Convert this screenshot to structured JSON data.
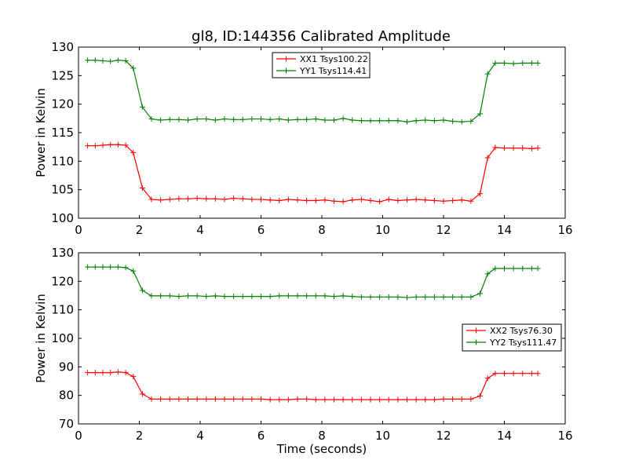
{
  "title": "gl8, ID:144356 Calibrated Amplitude",
  "colors": {
    "xx": "#ff0000",
    "yy": "#008000",
    "axes": "#000000",
    "background": "#ffffff"
  },
  "chart_data": [
    {
      "type": "line",
      "xlabel": "",
      "ylabel": "Power in Kelvin",
      "xlim": [
        0,
        16
      ],
      "ylim": [
        100,
        130
      ],
      "xticks": [
        0,
        2,
        4,
        6,
        8,
        10,
        12,
        14,
        16
      ],
      "yticks": [
        100,
        105,
        110,
        115,
        120,
        125,
        130
      ],
      "grid": false,
      "legend_position": "top-center",
      "series": [
        {
          "name": "XX1 Tsys100.22",
          "color": "#ff0000",
          "x": [
            0.3,
            0.55,
            0.8,
            1.05,
            1.3,
            1.55,
            1.8,
            2.1,
            2.4,
            2.7,
            3.0,
            3.3,
            3.6,
            3.9,
            4.2,
            4.5,
            4.8,
            5.1,
            5.4,
            5.7,
            6.0,
            6.3,
            6.6,
            6.9,
            7.2,
            7.5,
            7.8,
            8.1,
            8.4,
            8.7,
            9.0,
            9.3,
            9.6,
            9.9,
            10.2,
            10.5,
            10.8,
            11.1,
            11.4,
            11.7,
            12.0,
            12.3,
            12.6,
            12.9,
            13.2,
            13.45,
            13.7,
            14.0,
            14.3,
            14.6,
            14.9,
            15.1
          ],
          "y": [
            112.7,
            112.7,
            112.8,
            112.9,
            112.9,
            112.8,
            111.5,
            105.3,
            103.3,
            103.2,
            103.3,
            103.4,
            103.4,
            103.5,
            103.4,
            103.4,
            103.3,
            103.5,
            103.4,
            103.3,
            103.3,
            103.2,
            103.1,
            103.3,
            103.2,
            103.1,
            103.1,
            103.2,
            103.0,
            102.9,
            103.2,
            103.3,
            103.1,
            102.9,
            103.3,
            103.1,
            103.2,
            103.3,
            103.2,
            103.1,
            103.0,
            103.1,
            103.2,
            103.0,
            104.3,
            110.6,
            112.4,
            112.3,
            112.3,
            112.3,
            112.2,
            112.3
          ]
        },
        {
          "name": "YY1 Tsys114.41",
          "color": "#008000",
          "x": [
            0.3,
            0.55,
            0.8,
            1.05,
            1.3,
            1.55,
            1.8,
            2.1,
            2.4,
            2.7,
            3.0,
            3.3,
            3.6,
            3.9,
            4.2,
            4.5,
            4.8,
            5.1,
            5.4,
            5.7,
            6.0,
            6.3,
            6.6,
            6.9,
            7.2,
            7.5,
            7.8,
            8.1,
            8.4,
            8.7,
            9.0,
            9.3,
            9.6,
            9.9,
            10.2,
            10.5,
            10.8,
            11.1,
            11.4,
            11.7,
            12.0,
            12.3,
            12.6,
            12.9,
            13.2,
            13.45,
            13.7,
            14.0,
            14.3,
            14.6,
            14.9,
            15.1
          ],
          "y": [
            127.7,
            127.7,
            127.6,
            127.5,
            127.7,
            127.6,
            126.3,
            119.5,
            117.4,
            117.2,
            117.3,
            117.3,
            117.2,
            117.4,
            117.4,
            117.2,
            117.4,
            117.3,
            117.3,
            117.4,
            117.4,
            117.3,
            117.4,
            117.2,
            117.3,
            117.3,
            117.4,
            117.2,
            117.2,
            117.5,
            117.2,
            117.1,
            117.1,
            117.1,
            117.1,
            117.1,
            116.9,
            117.1,
            117.2,
            117.1,
            117.2,
            117.0,
            116.9,
            117.0,
            118.3,
            125.3,
            127.2,
            127.2,
            127.1,
            127.2,
            127.2,
            127.2
          ]
        }
      ]
    },
    {
      "type": "line",
      "xlabel": "Time (seconds)",
      "ylabel": "Power in Kelvin",
      "xlim": [
        0,
        16
      ],
      "ylim": [
        70,
        130
      ],
      "xticks": [
        0,
        2,
        4,
        6,
        8,
        10,
        12,
        14,
        16
      ],
      "yticks": [
        70,
        80,
        90,
        100,
        110,
        120,
        130
      ],
      "grid": false,
      "legend_position": "center-right",
      "series": [
        {
          "name": "XX2 Tsys76.30",
          "color": "#ff0000",
          "x": [
            0.3,
            0.55,
            0.8,
            1.05,
            1.3,
            1.55,
            1.8,
            2.1,
            2.4,
            2.7,
            3.0,
            3.3,
            3.6,
            3.9,
            4.2,
            4.5,
            4.8,
            5.1,
            5.4,
            5.7,
            6.0,
            6.3,
            6.6,
            6.9,
            7.2,
            7.5,
            7.8,
            8.1,
            8.4,
            8.7,
            9.0,
            9.3,
            9.6,
            9.9,
            10.2,
            10.5,
            10.8,
            11.1,
            11.4,
            11.7,
            12.0,
            12.3,
            12.6,
            12.9,
            13.2,
            13.45,
            13.7,
            14.0,
            14.3,
            14.6,
            14.9,
            15.1
          ],
          "y": [
            88.0,
            88.0,
            88.0,
            88.0,
            88.2,
            88.0,
            86.6,
            80.5,
            78.7,
            78.7,
            78.7,
            78.7,
            78.7,
            78.7,
            78.7,
            78.7,
            78.7,
            78.7,
            78.7,
            78.7,
            78.7,
            78.5,
            78.5,
            78.5,
            78.7,
            78.7,
            78.5,
            78.5,
            78.5,
            78.5,
            78.5,
            78.5,
            78.5,
            78.5,
            78.5,
            78.5,
            78.5,
            78.5,
            78.5,
            78.5,
            78.7,
            78.7,
            78.7,
            78.7,
            79.8,
            86.0,
            87.7,
            87.7,
            87.7,
            87.7,
            87.7,
            87.7
          ]
        },
        {
          "name": "YY2 Tsys111.47",
          "color": "#008000",
          "x": [
            0.3,
            0.55,
            0.8,
            1.05,
            1.3,
            1.55,
            1.8,
            2.1,
            2.4,
            2.7,
            3.0,
            3.3,
            3.6,
            3.9,
            4.2,
            4.5,
            4.8,
            5.1,
            5.4,
            5.7,
            6.0,
            6.3,
            6.6,
            6.9,
            7.2,
            7.5,
            7.8,
            8.1,
            8.4,
            8.7,
            9.0,
            9.3,
            9.6,
            9.9,
            10.2,
            10.5,
            10.8,
            11.1,
            11.4,
            11.7,
            12.0,
            12.3,
            12.6,
            12.9,
            13.2,
            13.45,
            13.7,
            14.0,
            14.3,
            14.6,
            14.9,
            15.1
          ],
          "y": [
            125.0,
            125.0,
            125.0,
            125.0,
            125.0,
            124.8,
            123.6,
            116.8,
            114.9,
            114.9,
            114.9,
            114.7,
            114.9,
            114.9,
            114.7,
            114.9,
            114.7,
            114.7,
            114.7,
            114.7,
            114.7,
            114.7,
            114.9,
            114.9,
            114.9,
            114.9,
            114.9,
            114.9,
            114.7,
            114.9,
            114.7,
            114.5,
            114.5,
            114.5,
            114.5,
            114.5,
            114.3,
            114.5,
            114.5,
            114.5,
            114.5,
            114.5,
            114.5,
            114.5,
            115.7,
            122.6,
            124.5,
            124.5,
            124.5,
            124.5,
            124.5,
            124.5
          ]
        }
      ]
    }
  ]
}
